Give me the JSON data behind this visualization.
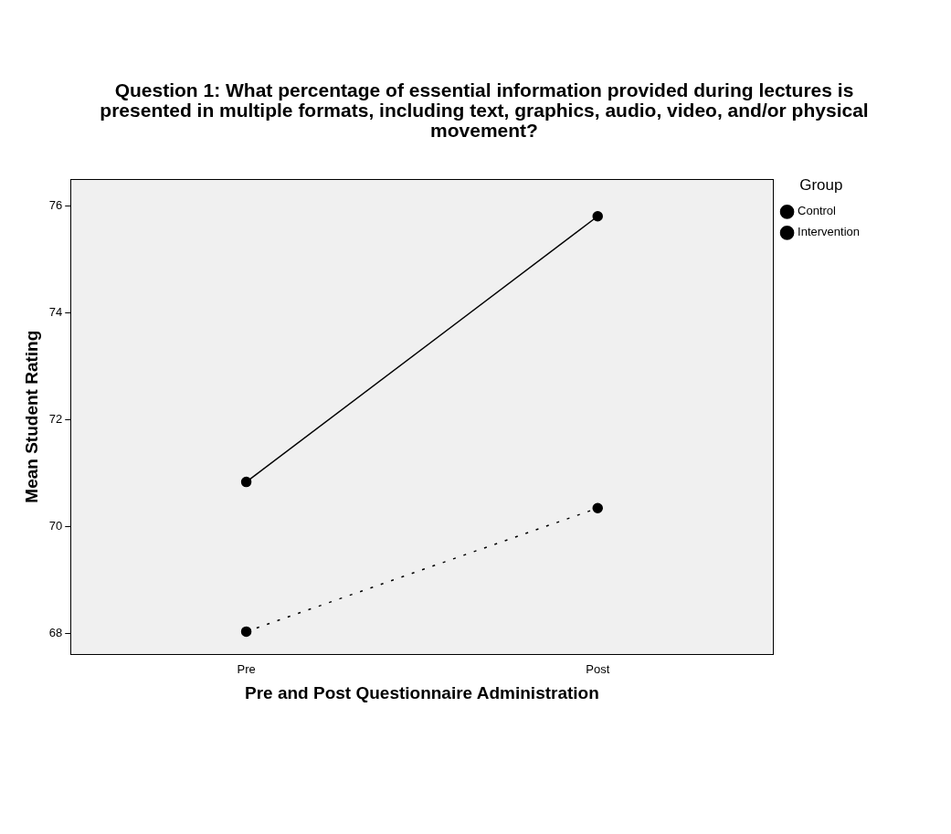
{
  "chart_data": {
    "type": "line",
    "title": "Question 1:  What percentage of essential information provided during lectures is presented in multiple formats, including text, graphics, audio, video, and/or physical movement?",
    "xlabel": "Pre and Post Questionnaire Administration",
    "ylabel": "Mean Student Rating",
    "legend_title": "Group",
    "categories": [
      "Pre",
      "Post"
    ],
    "series": [
      {
        "name": "Control",
        "color": "#000000",
        "values": [
          68.03,
          70.34
        ],
        "line_style": "dotted"
      },
      {
        "name": "Intervention",
        "color": "#000000",
        "values": [
          70.83,
          75.8
        ],
        "line_style": "solid"
      }
    ],
    "ylim": [
      67.6,
      76.5
    ],
    "yticks": [
      68,
      70,
      72,
      74,
      76
    ],
    "grid": false,
    "legend": "top right",
    "marker": "circle"
  }
}
